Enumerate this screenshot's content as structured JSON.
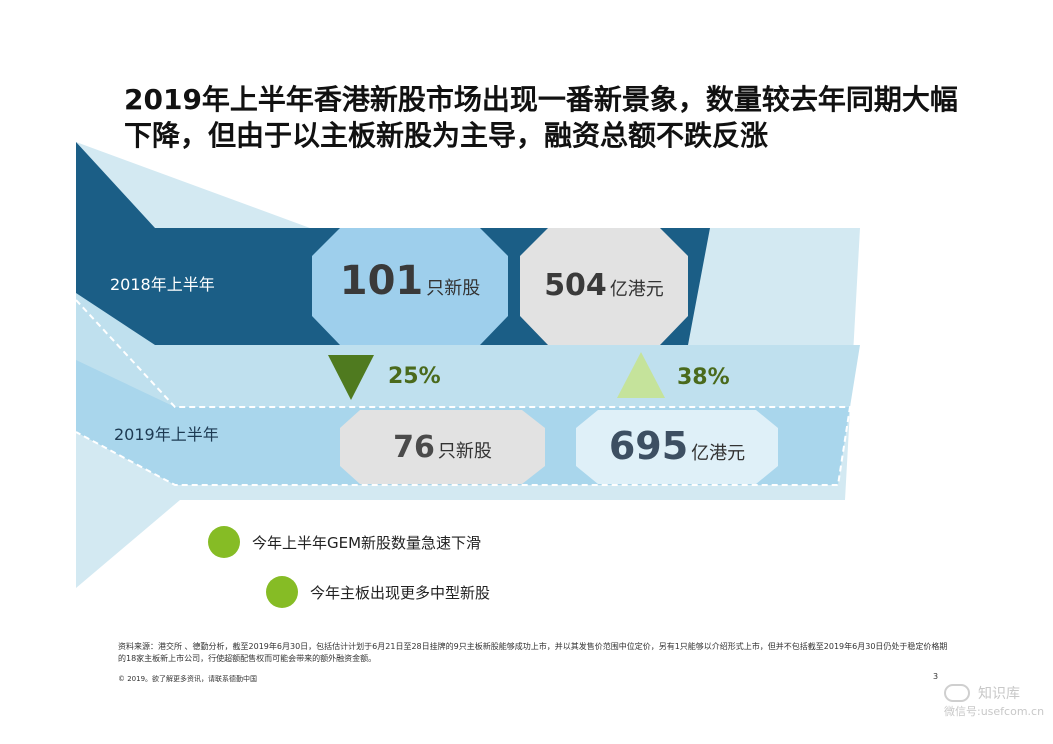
{
  "title": "2019年上半年香港新股市场出现一番新景象，数量较去年同期大幅下降，但由于以主板新股为主导，融资总额不跌反涨",
  "period_2018": "2018年上半年",
  "period_2019": "2019年上半年",
  "h1_2018": {
    "count_value": "101",
    "count_unit": "只新股",
    "amount_value": "504",
    "amount_unit": "亿港元"
  },
  "h1_2019": {
    "count_value": "76",
    "count_unit": "只新股",
    "amount_value": "695",
    "amount_unit": "亿港元"
  },
  "change_count": {
    "direction": "down",
    "percent": "25%",
    "color": "#4f7a1f"
  },
  "change_amount": {
    "direction": "up",
    "percent": "38%",
    "color": "#c5e39b"
  },
  "legend": [
    "今年上半年GEM新股数量急速下滑",
    "今年主板出现更多中型新股"
  ],
  "colors": {
    "dark_band": "#1b5e86",
    "light_band": "#a9d6ec",
    "pale_band": "#cfe7f1",
    "hex_blue": "#9ecfec",
    "hex_grey": "#e2e2e2",
    "legend_dot": "#86bc25"
  },
  "source_note": "资料来源：港交所 、德勤分析，截至2019年6月30日，包括估计计划于6月21日至28日挂牌的9只主板新股能够成功上市，并以其发售价范围中位定价，另有1只能够以介绍形式上市，但并不包括截至2019年6月30日仍处于稳定价格期的18家主板新上市公司，行使超额配售权而可能会带来的额外融资金额。",
  "copyright": "© 2019。欲了解更多资讯，请联系德勤中国",
  "page_number": "3",
  "watermark": {
    "name": "知识库",
    "sub": "微信号:usefcom.cn"
  }
}
